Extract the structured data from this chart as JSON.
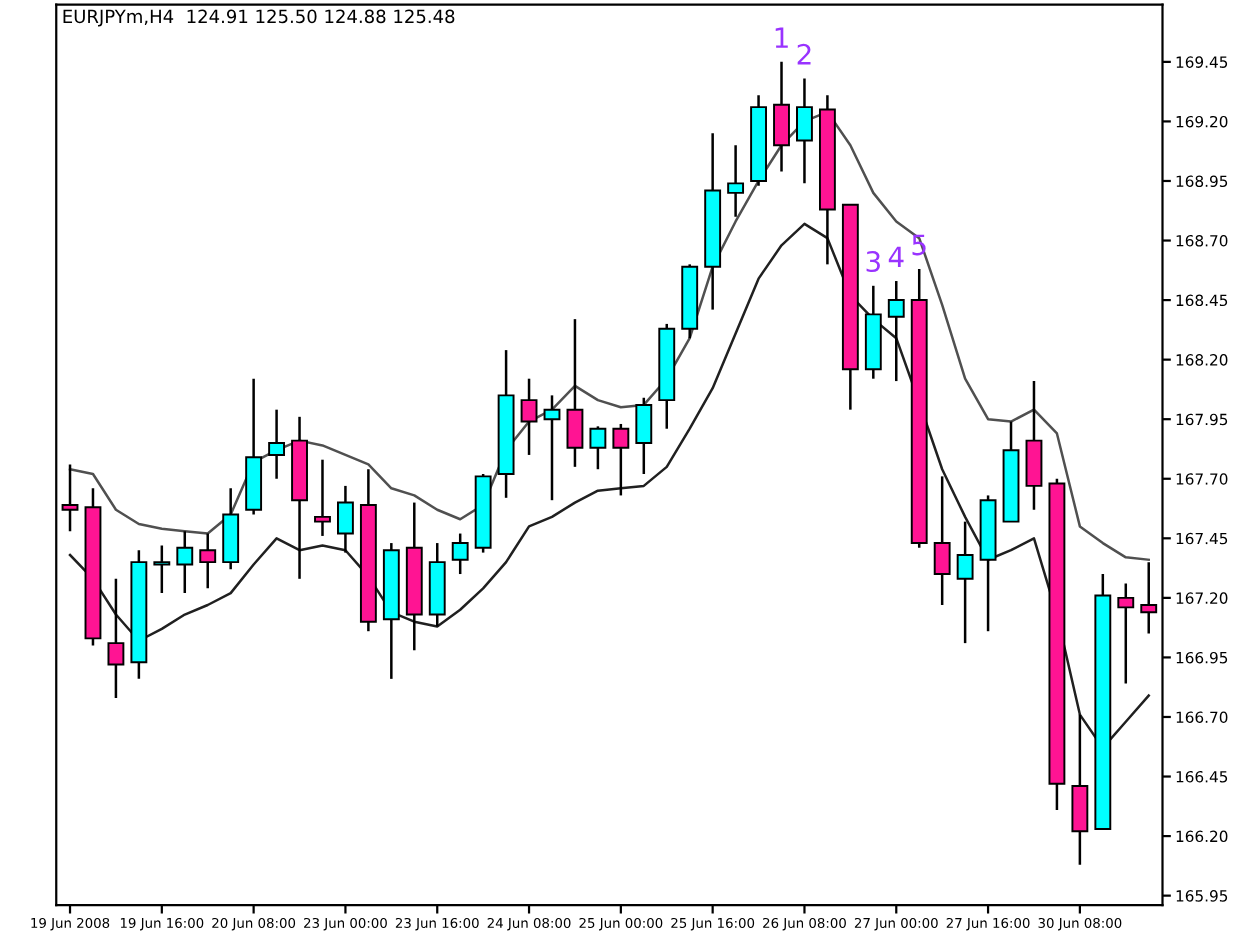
{
  "chart_data": {
    "type": "candlestick",
    "title": "EURJPYm,H4  124.91 125.50 124.88 125.48",
    "categories": [
      "19 Jun 2008",
      null,
      null,
      null,
      "19 Jun 16:00",
      null,
      null,
      null,
      "20 Jun 08:00",
      null,
      null,
      null,
      "23 Jun 00:00",
      null,
      null,
      null,
      "23 Jun 16:00",
      null,
      null,
      null,
      "24 Jun 08:00",
      null,
      null,
      null,
      "25 Jun 00:00",
      null,
      null,
      null,
      "25 Jun 16:00",
      null,
      null,
      null,
      "26 Jun 08:00",
      null,
      null,
      null,
      "27 Jun 00:00",
      null,
      null,
      null,
      "27 Jun 16:00",
      null,
      null,
      null,
      "30 Jun 08:00",
      null,
      null,
      null
    ],
    "value_labels": [
      null,
      null,
      null,
      null,
      null,
      null,
      null,
      null,
      null,
      null,
      null,
      null,
      null,
      null,
      null,
      null,
      null,
      null,
      null,
      null,
      null,
      null,
      null,
      null,
      null,
      null,
      null,
      null,
      null,
      null,
      null,
      "1",
      "2",
      null,
      null,
      "3",
      "4",
      "5",
      null,
      null,
      null,
      null,
      null,
      null,
      null,
      null,
      null,
      null
    ],
    "ohlc": [
      [
        167.59,
        167.76,
        167.48,
        167.57
      ],
      [
        167.58,
        167.66,
        167.0,
        167.03
      ],
      [
        167.01,
        167.28,
        166.78,
        166.92
      ],
      [
        166.93,
        167.4,
        166.86,
        167.35
      ],
      [
        167.34,
        167.42,
        167.22,
        167.35
      ],
      [
        167.34,
        167.48,
        167.22,
        167.41
      ],
      [
        167.4,
        167.47,
        167.24,
        167.35
      ],
      [
        167.35,
        167.66,
        167.32,
        167.55
      ],
      [
        167.57,
        168.12,
        167.55,
        167.79
      ],
      [
        167.8,
        167.99,
        167.7,
        167.85
      ],
      [
        167.86,
        167.96,
        167.28,
        167.61
      ],
      [
        167.54,
        167.78,
        167.46,
        167.52
      ],
      [
        167.47,
        167.67,
        167.39,
        167.6
      ],
      [
        167.59,
        167.74,
        167.06,
        167.1
      ],
      [
        167.11,
        167.43,
        166.86,
        167.4
      ],
      [
        167.41,
        167.6,
        166.98,
        167.13
      ],
      [
        167.13,
        167.43,
        167.08,
        167.35
      ],
      [
        167.36,
        167.47,
        167.3,
        167.43
      ],
      [
        167.41,
        167.72,
        167.39,
        167.71
      ],
      [
        167.72,
        168.24,
        167.62,
        168.05
      ],
      [
        168.03,
        168.12,
        167.8,
        167.94
      ],
      [
        167.95,
        168.05,
        167.61,
        167.99
      ],
      [
        167.99,
        168.37,
        167.75,
        167.83
      ],
      [
        167.83,
        167.92,
        167.74,
        167.91
      ],
      [
        167.91,
        167.93,
        167.63,
        167.83
      ],
      [
        167.85,
        168.04,
        167.72,
        168.01
      ],
      [
        168.03,
        168.35,
        167.91,
        168.33
      ],
      [
        168.33,
        168.6,
        168.29,
        168.59
      ],
      [
        168.59,
        169.15,
        168.41,
        168.91
      ],
      [
        168.9,
        169.1,
        168.8,
        168.94
      ],
      [
        168.95,
        169.31,
        168.93,
        169.26
      ],
      [
        169.27,
        169.45,
        168.99,
        169.1
      ],
      [
        169.12,
        169.38,
        168.94,
        169.26
      ],
      [
        169.25,
        169.31,
        168.6,
        168.83
      ],
      [
        168.85,
        168.85,
        167.99,
        168.16
      ],
      [
        168.16,
        168.51,
        168.12,
        168.39
      ],
      [
        168.38,
        168.53,
        168.11,
        168.45
      ],
      [
        168.45,
        168.58,
        167.41,
        167.43
      ],
      [
        167.43,
        167.71,
        167.17,
        167.3
      ],
      [
        167.28,
        167.52,
        167.01,
        167.38
      ],
      [
        167.36,
        167.63,
        167.06,
        167.61
      ],
      [
        167.52,
        167.94,
        167.52,
        167.82
      ],
      [
        167.86,
        168.11,
        167.57,
        167.67
      ],
      [
        167.68,
        167.7,
        166.31,
        166.42
      ],
      [
        166.41,
        166.71,
        166.08,
        166.22
      ],
      [
        166.23,
        167.3,
        166.23,
        167.21
      ],
      [
        167.2,
        167.26,
        166.84,
        167.16
      ],
      [
        167.17,
        167.35,
        167.05,
        167.14
      ]
    ],
    "colors": [
      "#ff1493",
      "#ff1493",
      "#ff1493",
      "#00ffff",
      "#00ffff",
      "#00ffff",
      "#ff1493",
      "#00ffff",
      "#00ffff",
      "#00ffff",
      "#ff1493",
      "#ff1493",
      "#00ffff",
      "#ff1493",
      "#00ffff",
      "#ff1493",
      "#00ffff",
      "#00ffff",
      "#00ffff",
      "#00ffff",
      "#ff1493",
      "#00ffff",
      "#ff1493",
      "#00ffff",
      "#ff1493",
      "#00ffff",
      "#00ffff",
      "#00ffff",
      "#00ffff",
      "#00ffff",
      "#00ffff",
      "#ff1493",
      "#00ffff",
      "#ff1493",
      "#ff1493",
      "#00ffff",
      "#00ffff",
      "#ff1493",
      "#ff1493",
      "#00ffff",
      "#00ffff",
      "#00ffff",
      "#ff1493",
      "#ff1493",
      "#ff1493",
      "#00ffff",
      "#ff1493",
      "#ff1493"
    ],
    "series": [
      {
        "type": "line",
        "color": "#505050",
        "values": [
          167.74,
          167.72,
          167.57,
          167.51,
          167.49,
          167.48,
          167.47,
          167.55,
          167.77,
          167.82,
          167.86,
          167.84,
          167.8,
          167.76,
          167.66,
          167.63,
          167.57,
          167.53,
          167.59,
          167.82,
          167.94,
          167.99,
          168.09,
          168.03,
          168.0,
          168.01,
          168.12,
          168.29,
          168.59,
          168.78,
          168.95,
          169.1,
          169.2,
          169.24,
          169.1,
          168.9,
          168.78,
          168.71,
          168.43,
          168.12,
          167.95,
          167.94,
          167.99,
          167.89,
          167.5,
          167.43,
          167.37,
          167.36
        ]
      },
      {
        "type": "line",
        "color": "#202020",
        "values": [
          167.38,
          167.28,
          167.13,
          167.02,
          167.07,
          167.13,
          167.17,
          167.22,
          167.34,
          167.45,
          167.4,
          167.42,
          167.4,
          167.29,
          167.14,
          167.1,
          167.08,
          167.15,
          167.24,
          167.35,
          167.5,
          167.54,
          167.6,
          167.65,
          167.66,
          167.67,
          167.75,
          167.91,
          168.08,
          168.31,
          168.54,
          168.68,
          168.77,
          168.71,
          168.47,
          168.37,
          168.29,
          168.02,
          167.74,
          167.54,
          167.36,
          167.4,
          167.45,
          167.13,
          166.71,
          166.57,
          166.68,
          166.79
        ]
      }
    ],
    "ylim": [
      165.91,
      169.69
    ],
    "yticks": [
      {
        "value": 165.95,
        "label": "165.95"
      },
      {
        "value": 166.2,
        "label": "166.20"
      },
      {
        "value": 166.45,
        "label": "166.45"
      },
      {
        "value": 166.7,
        "label": "166.70"
      },
      {
        "value": 166.95,
        "label": "166.95"
      },
      {
        "value": 167.2,
        "label": "167.20"
      },
      {
        "value": 167.45,
        "label": "167.45"
      },
      {
        "value": 167.7,
        "label": "167.70"
      },
      {
        "value": 167.95,
        "label": "167.95"
      },
      {
        "value": 168.2,
        "label": "168.20"
      },
      {
        "value": 168.45,
        "label": "168.45"
      },
      {
        "value": 168.7,
        "label": "168.70"
      },
      {
        "value": 168.95,
        "label": "168.95"
      },
      {
        "value": 169.2,
        "label": "169.20"
      },
      {
        "value": 169.45,
        "label": "169.45"
      }
    ]
  }
}
